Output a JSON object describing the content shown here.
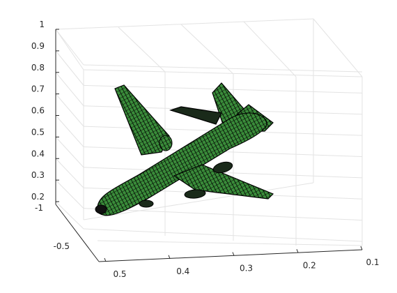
{
  "chart_data": {
    "type": "surface3d",
    "title": "",
    "xlabel": "",
    "ylabel": "",
    "zlabel": "",
    "grid": true,
    "axes": {
      "x": {
        "ticks": [
          0.5,
          0.4,
          0.3,
          0.2,
          0.1
        ],
        "tick_labels": [
          "0.5",
          "0.4",
          "0.3",
          "0.2",
          "0.1"
        ]
      },
      "y": {
        "ticks": [
          -1,
          -0.5
        ],
        "tick_labels": [
          "-1",
          "-0.5"
        ]
      },
      "z": {
        "ticks": [
          1,
          0.9,
          0.8,
          0.7,
          0.6,
          0.5,
          0.4,
          0.3,
          0.2
        ],
        "tick_labels": [
          "1",
          "0.9",
          "0.8",
          "0.7",
          "0.6",
          "0.5",
          "0.4",
          "0.3",
          "0.2"
        ]
      }
    },
    "object": "airplane mesh",
    "colors": {
      "face": "#3a8c3a",
      "edge": "#000000",
      "grid": "#e3e3e3",
      "axis": "#262626"
    }
  }
}
